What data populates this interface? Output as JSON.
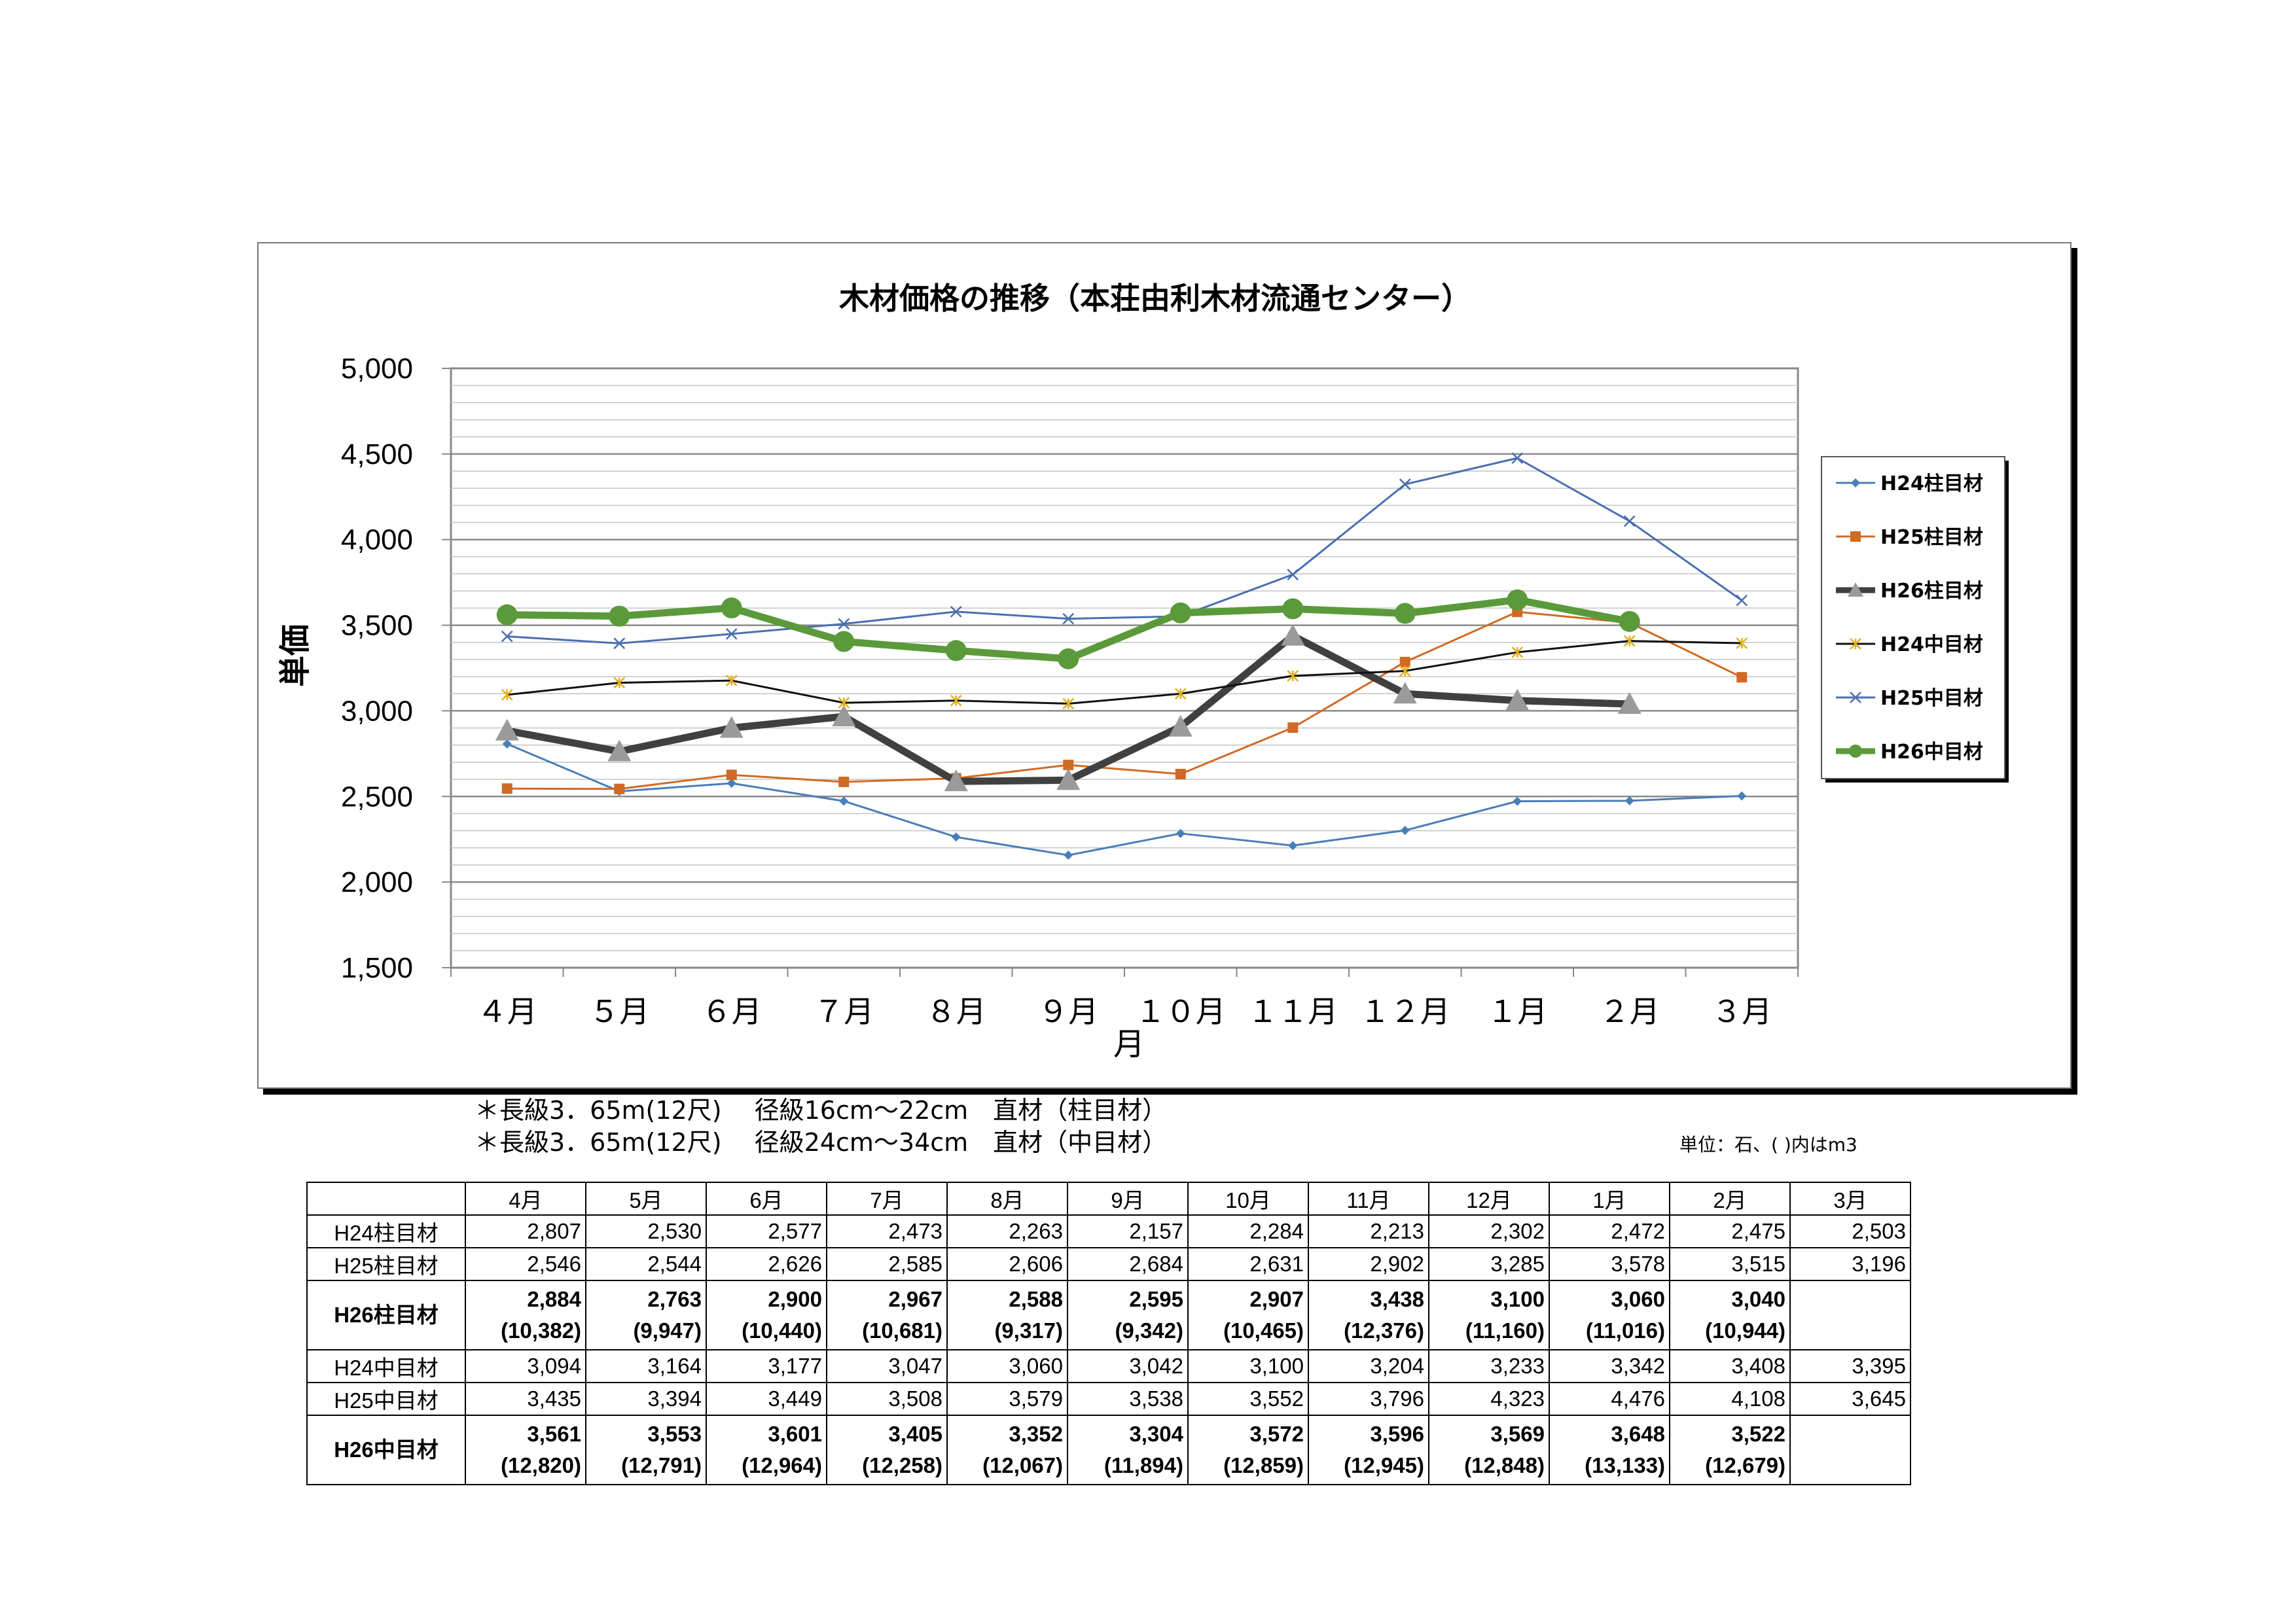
{
  "chart_data": {
    "type": "line",
    "title": "木材価格の推移（本荘由利木材流通センター）",
    "xlabel": "月",
    "ylabel": "単価",
    "ylim": [
      1500,
      5000
    ],
    "yticks": [
      "1,500",
      "2,000",
      "2,500",
      "3,000",
      "3,500",
      "4,000",
      "4,500",
      "5,000"
    ],
    "categories": [
      "４月",
      "５月",
      "６月",
      "７月",
      "８月",
      "９月",
      "１０月",
      "１１月",
      "１２月",
      "１月",
      "２月",
      "３月"
    ],
    "legend_position": "right",
    "series": [
      {
        "name": "H24柱目材",
        "color": "#4a7eb8",
        "marker": "diamond",
        "width": 3,
        "values": [
          2807,
          2530,
          2577,
          2473,
          2263,
          2157,
          2284,
          2213,
          2302,
          2472,
          2475,
          2503
        ]
      },
      {
        "name": "H25柱目材",
        "color": "#d06a24",
        "marker": "square",
        "width": 3,
        "values": [
          2546,
          2544,
          2626,
          2585,
          2606,
          2684,
          2631,
          2902,
          3285,
          3578,
          3515,
          3196
        ]
      },
      {
        "name": "H26柱目材",
        "color": "#404040",
        "marker": "triangle",
        "width": 11,
        "values": [
          2884,
          2763,
          2900,
          2967,
          2588,
          2595,
          2907,
          3438,
          3100,
          3060,
          3040,
          null
        ]
      },
      {
        "name": "H24中目材",
        "color": "#111111",
        "marker": "star",
        "width": 3,
        "values": [
          3094,
          3164,
          3177,
          3047,
          3060,
          3042,
          3100,
          3204,
          3233,
          3342,
          3408,
          3395
        ]
      },
      {
        "name": "H25中目材",
        "color": "#4a6fb0",
        "marker": "x",
        "width": 3,
        "values": [
          3435,
          3394,
          3449,
          3508,
          3579,
          3538,
          3552,
          3796,
          4323,
          4476,
          4108,
          3645
        ]
      },
      {
        "name": "H26中目材",
        "color": "#5a9a3a",
        "marker": "circle",
        "width": 11,
        "values": [
          3561,
          3553,
          3601,
          3405,
          3352,
          3304,
          3572,
          3596,
          3569,
          3648,
          3522,
          null
        ]
      }
    ]
  },
  "notes": [
    "＊長級3．65m(12尺)　 径級16cm～22cm　直材（柱目材）",
    "＊長級3．65m(12尺)　 径級24cm～34cm　直材（中目材）"
  ],
  "unit_note": "単位：石、( )内はm3",
  "table": {
    "headers": [
      "4月",
      "5月",
      "6月",
      "7月",
      "8月",
      "9月",
      "10月",
      "11月",
      "12月",
      "1月",
      "2月",
      "3月"
    ],
    "rows": [
      {
        "label": "H24柱目材",
        "bold": false,
        "cells": [
          "2,807",
          "2,530",
          "2,577",
          "2,473",
          "2,263",
          "2,157",
          "2,284",
          "2,213",
          "2,302",
          "2,472",
          "2,475",
          "2,503"
        ]
      },
      {
        "label": "H25柱目材",
        "bold": false,
        "cells": [
          "2,546",
          "2,544",
          "2,626",
          "2,585",
          "2,606",
          "2,684",
          "2,631",
          "2,902",
          "3,285",
          "3,578",
          "3,515",
          "3,196"
        ]
      },
      {
        "label": "H26柱目材",
        "bold": true,
        "cells": [
          "2,884",
          "2,763",
          "2,900",
          "2,967",
          "2,588",
          "2,595",
          "2,907",
          "3,438",
          "3,100",
          "3,060",
          "3,040",
          ""
        ],
        "sub": [
          "(10,382)",
          "(9,947)",
          "(10,440)",
          "(10,681)",
          "(9,317)",
          "(9,342)",
          "(10,465)",
          "(12,376)",
          "(11,160)",
          "(11,016)",
          "(10,944)",
          ""
        ]
      },
      {
        "label": "H24中目材",
        "bold": false,
        "cells": [
          "3,094",
          "3,164",
          "3,177",
          "3,047",
          "3,060",
          "3,042",
          "3,100",
          "3,204",
          "3,233",
          "3,342",
          "3,408",
          "3,395"
        ]
      },
      {
        "label": "H25中目材",
        "bold": false,
        "cells": [
          "3,435",
          "3,394",
          "3,449",
          "3,508",
          "3,579",
          "3,538",
          "3,552",
          "3,796",
          "4,323",
          "4,476",
          "4,108",
          "3,645"
        ]
      },
      {
        "label": "H26中目材",
        "bold": true,
        "cells": [
          "3,561",
          "3,553",
          "3,601",
          "3,405",
          "3,352",
          "3,304",
          "3,572",
          "3,596",
          "3,569",
          "3,648",
          "3,522",
          ""
        ],
        "sub": [
          "(12,820)",
          "(12,791)",
          "(12,964)",
          "(12,258)",
          "(12,067)",
          "(11,894)",
          "(12,859)",
          "(12,945)",
          "(12,848)",
          "(13,133)",
          "(12,679)",
          ""
        ]
      }
    ]
  }
}
